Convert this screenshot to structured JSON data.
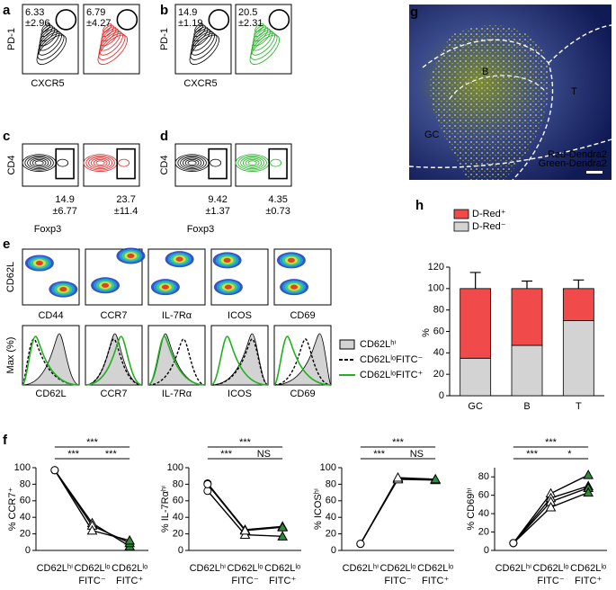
{
  "panel_labels": [
    "a",
    "b",
    "c",
    "d",
    "e",
    "f",
    "g",
    "h"
  ],
  "flow": {
    "a": {
      "ylabel": "PD-1",
      "xlabel": "CXCR5",
      "gates": [
        [
          "6.33",
          "±2.96"
        ],
        [
          "6.79",
          "±4.27"
        ]
      ]
    },
    "b": {
      "ylabel": "PD-1",
      "xlabel": "CXCR5",
      "gates": [
        [
          "14.9",
          "±1.19"
        ],
        [
          "20.5",
          "±2.31"
        ]
      ]
    },
    "c": {
      "ylabel": "CD4",
      "xlabel": "Foxp3",
      "gates": [
        [
          "14.9",
          "±6.77"
        ],
        [
          "23.7",
          "±11.4"
        ]
      ]
    },
    "d": {
      "ylabel": "CD4",
      "xlabel": "Foxp3",
      "gates": [
        [
          "9.42",
          "±1.37"
        ],
        [
          "4.35",
          "±0.73"
        ]
      ]
    },
    "e": {
      "ylabel_top": "CD62L",
      "top_labels": [
        "CD44",
        "CCR7",
        "IL-7Rα",
        "ICOS",
        "CD69"
      ],
      "ylabel_bottom": "Max (%)",
      "bottom_labels": [
        "CD62L",
        "CCR7",
        "IL-7Rα",
        "ICOS",
        "CD69"
      ],
      "legend": [
        "CD62Lʰⁱ",
        "CD62LˡᵒFITC⁻",
        "CD62LˡᵒFITC⁺"
      ]
    }
  },
  "image_g": {
    "labels": [
      "B",
      "T",
      "GC"
    ],
    "legend": [
      "Red-Dendra2",
      "Green-Dendra2"
    ]
  },
  "chart_data": [
    {
      "type": "stacked-bar",
      "ylabel": "%",
      "categories": [
        "GC",
        "B",
        "T"
      ],
      "series": [
        {
          "name": "D-Red⁻",
          "color": "#d3d3d3",
          "values": [
            35,
            47,
            70
          ],
          "errors": [
            15,
            7,
            8
          ]
        },
        {
          "name": "D-Red⁺",
          "color": "#f04a4a",
          "values": [
            65,
            53,
            30
          ],
          "errors": [
            15,
            7,
            8
          ]
        }
      ],
      "ylim": [
        0,
        120
      ],
      "yticks": [
        0,
        20,
        40,
        60,
        80,
        100,
        120
      ]
    },
    {
      "type": "line",
      "ylabel": "% CCR7⁺",
      "categories": [
        [
          "CD62Lʰⁱ"
        ],
        [
          "CD62Lˡᵒ",
          "FITC⁻"
        ],
        [
          "CD62Lˡᵒ",
          "FITC⁺"
        ]
      ],
      "markers": [
        "circle",
        "triangle",
        "triangle"
      ],
      "marker_colors": [
        "#ffffff",
        "#ffffff",
        "#2e8b3a"
      ],
      "color": "#000000",
      "series": [
        {
          "values": [
            97,
            33,
            5
          ]
        },
        {
          "values": [
            97,
            30,
            9
          ]
        },
        {
          "values": [
            97,
            24,
            12
          ]
        }
      ],
      "significance": [
        {
          "between": [
            0,
            2
          ],
          "label": "***"
        },
        {
          "between": [
            0,
            1
          ],
          "label": "***"
        },
        {
          "between": [
            1,
            2
          ],
          "label": "***"
        }
      ],
      "ylim": [
        0,
        100
      ],
      "yticks": [
        0,
        20,
        40,
        60,
        80,
        100
      ]
    },
    {
      "type": "line",
      "ylabel": "% IL-7Rαʰⁱ",
      "categories": [
        [
          "CD62Lʰⁱ"
        ],
        [
          "CD62Lˡᵒ",
          "FITC⁻"
        ],
        [
          "CD62Lˡᵒ",
          "FITC⁺"
        ]
      ],
      "markers": [
        "circle",
        "triangle",
        "triangle"
      ],
      "marker_colors": [
        "#ffffff",
        "#ffffff",
        "#2e8b3a"
      ],
      "color": "#000000",
      "series": [
        {
          "values": [
            81,
            25,
            29
          ]
        },
        {
          "values": [
            72,
            19,
            17
          ]
        },
        {
          "values": [
            80,
            24,
            28
          ]
        }
      ],
      "significance": [
        {
          "between": [
            0,
            2
          ],
          "label": "***"
        },
        {
          "between": [
            0,
            1
          ],
          "label": "***"
        },
        {
          "between": [
            1,
            2
          ],
          "label": "NS"
        }
      ],
      "ylim": [
        0,
        100
      ],
      "yticks": [
        0,
        20,
        40,
        60,
        80,
        100
      ]
    },
    {
      "type": "line",
      "ylabel": "% ICOSʰⁱ",
      "categories": [
        [
          "CD62Lʰⁱ"
        ],
        [
          "CD62Lˡᵒ",
          "FITC⁻"
        ],
        [
          "CD62Lˡᵒ",
          "FITC⁺"
        ]
      ],
      "markers": [
        "circle",
        "triangle",
        "triangle"
      ],
      "marker_colors": [
        "#ffffff",
        "#ffffff",
        "#2e8b3a"
      ],
      "color": "#000000",
      "series": [
        {
          "values": [
            8,
            87,
            86
          ]
        },
        {
          "values": [
            8,
            86,
            85
          ]
        },
        {
          "values": [
            8,
            88,
            86
          ]
        }
      ],
      "significance": [
        {
          "between": [
            0,
            2
          ],
          "label": "***"
        },
        {
          "between": [
            0,
            1
          ],
          "label": "***"
        },
        {
          "between": [
            1,
            2
          ],
          "label": "NS"
        }
      ],
      "ylim": [
        0,
        100
      ],
      "yticks": [
        0,
        20,
        40,
        60,
        80,
        100
      ]
    },
    {
      "type": "line",
      "ylabel": "% CD69ʰⁱ",
      "categories": [
        [
          "CD62Lʰⁱ"
        ],
        [
          "CD62Lˡᵒ",
          "FITC⁻"
        ],
        [
          "CD62Lˡᵒ",
          "FITC⁺"
        ]
      ],
      "markers": [
        "circle",
        "triangle",
        "triangle"
      ],
      "marker_colors": [
        "#ffffff",
        "#ffffff",
        "#2e8b3a"
      ],
      "color": "#000000",
      "series": [
        {
          "values": [
            8,
            62,
            82
          ]
        },
        {
          "values": [
            8,
            57,
            70
          ]
        },
        {
          "values": [
            8,
            53,
            68
          ]
        },
        {
          "values": [
            8,
            47,
            63
          ]
        }
      ],
      "significance": [
        {
          "between": [
            0,
            2
          ],
          "label": "***"
        },
        {
          "between": [
            0,
            1
          ],
          "label": "***"
        },
        {
          "between": [
            1,
            2
          ],
          "label": "*"
        }
      ],
      "ylim": [
        0,
        90
      ],
      "yticks": [
        0,
        20,
        40,
        60,
        80
      ]
    }
  ]
}
